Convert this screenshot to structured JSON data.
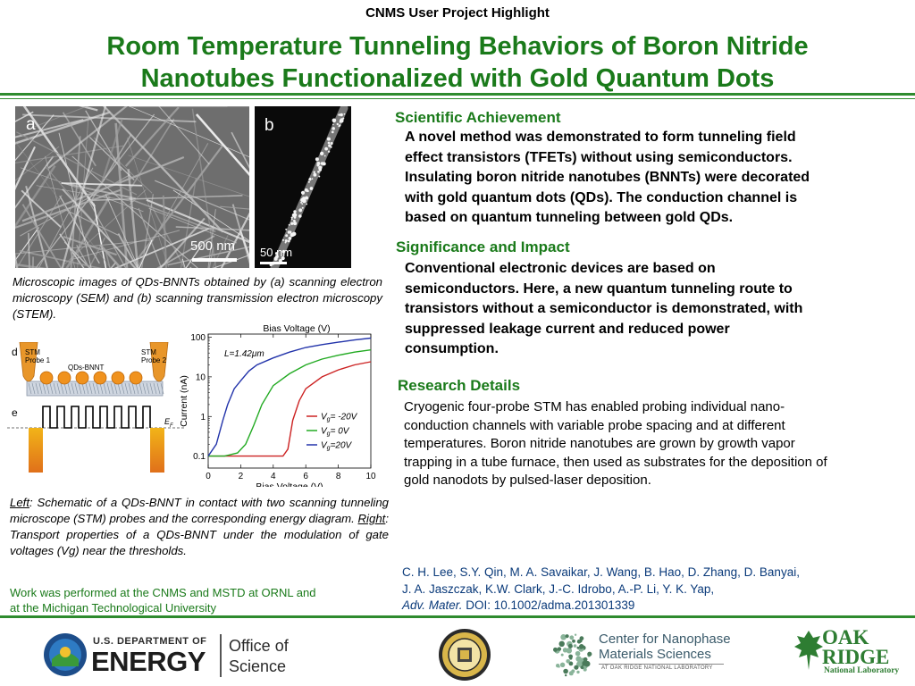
{
  "header": {
    "top_label": "CNMS User Project Highlight"
  },
  "title": {
    "line1": "Room Temperature Tunneling Behaviors of Boron Nitride",
    "line2": "Nanotubes Functionalized with Gold Quantum Dots"
  },
  "images": {
    "sem": {
      "panel_letter": "a",
      "scale_bar": "500 nm"
    },
    "stem": {
      "panel_letter": "b",
      "scale_bar": "50 nm"
    }
  },
  "captions": {
    "top": "Microscopic images of QDs-BNNTs obtained by (a) scanning electron microscopy (SEM) and (b) scanning transmission electron microscopy (STEM).",
    "bottom_left_word": "Left",
    "bottom_part1": ": Schematic of a QDs-BNNT in contact with two scanning tunneling microscope (STM) probes and the corresponding energy diagram. ",
    "bottom_right_word": "Right",
    "bottom_part2": ": Transport properties of a QDs-BNNT under the modulation of gate voltages (Vg) near the thresholds."
  },
  "credit": {
    "line1": "Work was performed at the CNMS and MSTD at ORNL and",
    "line2": "at the Michigan Technological University"
  },
  "schematic": {
    "label_d": "d",
    "label_e": "e",
    "probe1": [
      "STM",
      "Probe 1"
    ],
    "probe2": [
      "STM",
      "Probe 2"
    ],
    "tube_label": "QDs-BNNT",
    "fermi_label": "E",
    "fermi_sub": "F"
  },
  "sections": {
    "achievement": {
      "heading": "Scientific Achievement",
      "lines": [
        "A novel method was demonstrated to form tunneling field",
        "effect transistors (TFETs) without using semiconductors.",
        "Insulating boron nitride nanotubes (BNNTs) were decorated",
        "with gold quantum dots (QDs). The conduction channel is",
        "based on quantum tunneling between gold QDs."
      ]
    },
    "impact": {
      "heading": "Significance and Impact",
      "lines": [
        "Conventional electronic devices are based on",
        "semiconductors. Here, a new quantum tunneling route to",
        "transistors without a semiconductor is  demonstrated, with",
        "suppressed leakage current and reduced power",
        "consumption."
      ]
    },
    "details": {
      "heading": "Research Details",
      "lines": [
        "Cryogenic four-probe STM has enabled probing individual nano-",
        "conduction channels  with variable probe spacing and at different",
        "temperatures. Boron nitride nanotubes are grown by growth vapor",
        "trapping in a tube furnace, then used as substrates for the deposition of",
        "gold nanodots by pulsed-laser deposition."
      ]
    }
  },
  "citation": {
    "line1": "C. H. Lee, S.Y. Qin, M. A. Savaikar, J. Wang, B. Hao, D. Zhang, D. Banyai,",
    "line2": "J. A. Jaszczak, K.W. Clark, J.-C. Idrobo, A.-P. Li, Y. K. Yap,",
    "journal": "Adv. Mater.",
    "doi": " DOI: 10.1002/adma.201301339"
  },
  "logos": {
    "doe_small": "U.S. DEPARTMENT OF",
    "doe_big": "ENERGY",
    "office1": "Office of",
    "office2": "Science",
    "cnms1": "Center for Nanophase",
    "cnms2": "Materials Sciences",
    "cnms3": "AT OAK RIDGE NATIONAL LABORATORY",
    "ornl1": "OAK",
    "ornl2": "RIDGE",
    "ornl3": "National Laboratory"
  },
  "colors": {
    "green": "#1a7a1a",
    "rule": "#2e8b2e",
    "series_red": "#cc2222",
    "series_green": "#22aa22",
    "series_blue": "#2233aa"
  },
  "chart_data": {
    "type": "line",
    "title": "",
    "top_axis_label": "Bias Voltage (V)",
    "xlabel": "Bias Voltage (V)",
    "ylabel": "Current (nA)",
    "annotation": "L=1.42μm",
    "xlim": [
      0,
      10
    ],
    "ylim": [
      0.05,
      120
    ],
    "yscale": "log",
    "xticks": [
      "0",
      "2",
      "4",
      "6",
      "8",
      "10"
    ],
    "yticks": [
      "0.1",
      "1",
      "10",
      "100"
    ],
    "legend_position": "bottom-right",
    "series": [
      {
        "name": "V_g= -20V",
        "legend_main": "V",
        "legend_sub": "g",
        "legend_rest": "= -20V",
        "color": "#cc2222",
        "x": [
          0,
          1,
          2,
          3,
          4,
          4.6,
          4.9,
          5.2,
          5.6,
          6,
          7,
          8,
          9,
          10
        ],
        "y": [
          0.1,
          0.1,
          0.1,
          0.1,
          0.1,
          0.1,
          0.15,
          0.8,
          2.5,
          5,
          10,
          15,
          20,
          24
        ]
      },
      {
        "name": "V_g= 0V",
        "legend_main": "V",
        "legend_sub": "g",
        "legend_rest": "= 0V",
        "color": "#22aa22",
        "x": [
          0,
          1,
          1.8,
          2.3,
          2.8,
          3.3,
          4,
          5,
          6,
          7,
          8,
          9,
          10
        ],
        "y": [
          0.1,
          0.1,
          0.12,
          0.2,
          0.6,
          2,
          6,
          12,
          20,
          28,
          35,
          42,
          48
        ]
      },
      {
        "name": "V_g=20V",
        "legend_main": "V",
        "legend_sub": "g",
        "legend_rest": "=20V",
        "color": "#2233aa",
        "x": [
          0,
          0.5,
          0.9,
          1.2,
          1.6,
          2,
          2.5,
          3,
          4,
          5,
          6,
          7,
          8,
          9,
          10
        ],
        "y": [
          0.1,
          0.2,
          0.8,
          2,
          5,
          8,
          14,
          20,
          30,
          42,
          55,
          65,
          75,
          85,
          95
        ]
      }
    ]
  }
}
